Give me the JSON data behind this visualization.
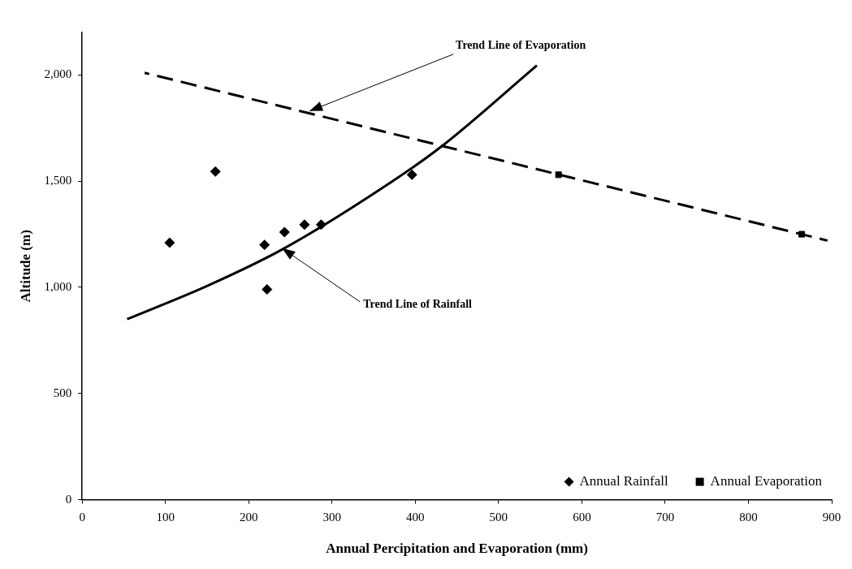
{
  "chart_data": {
    "type": "scatter",
    "xlabel": "Annual Percipitation and Evaporation (mm)",
    "ylabel": "Altitude (m)",
    "xlim": [
      0,
      900
    ],
    "xticks": [
      0,
      100,
      200,
      300,
      400,
      500,
      600,
      700,
      800,
      900
    ],
    "ylim": [
      0,
      2200
    ],
    "yticks": [
      0,
      {
        "value": 500,
        "label": "500"
      },
      {
        "value": 1000,
        "label": "1,000"
      },
      {
        "value": 1500,
        "label": "1,500"
      },
      {
        "value": 2000,
        "label": "2,000"
      }
    ],
    "grid": false,
    "legend": "bottom right",
    "series": [
      {
        "name": "Annual Rainfall",
        "marker": "diamond",
        "color": "#000000",
        "x": [
          219,
          222,
          243,
          267,
          287,
          396
        ],
        "values": [
          1200,
          990,
          1260,
          1295,
          1295,
          1530
        ]
      },
      {
        "marker": "diamond",
        "color": "#000000",
        "x": [
          105,
          160
        ],
        "values": [
          1210,
          1545
        ]
      },
      {
        "name": "Annual Evaporation",
        "marker": "square",
        "color": "#000000",
        "x": [
          572,
          864
        ],
        "values": [
          1530,
          1250
        ]
      },
      {
        "type": "line",
        "marker": "none",
        "line_style": "solid",
        "color": "#000000",
        "x": [
          54,
          152,
          241,
          369,
          432,
          546
        ],
        "values": [
          850,
          1010,
          1180,
          1490,
          1665,
          2045
        ]
      },
      {
        "type": "line",
        "marker": "none",
        "line_style": "dashed",
        "color": "#000000",
        "x": [
          75,
          895
        ],
        "values": [
          2010,
          1220
        ]
      }
    ],
    "annotations": [
      {
        "text": "Trend Line of Evaporation",
        "x": 273,
        "y": 1830
      },
      {
        "text": "Trend Line of Rainfall",
        "x": 240,
        "y": 1184
      }
    ]
  }
}
